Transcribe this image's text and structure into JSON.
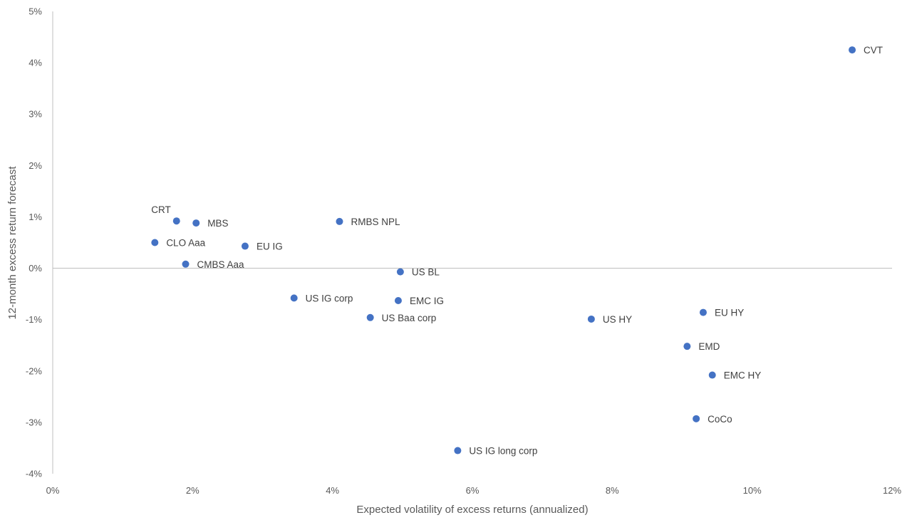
{
  "chart_data": {
    "type": "scatter",
    "title": "",
    "xlabel": "Expected volatility of excess returns (annualized)",
    "ylabel": "12-month excess return forecast",
    "xlim": [
      0,
      12
    ],
    "ylim": [
      -4,
      5
    ],
    "x_ticks": [
      0,
      2,
      4,
      6,
      8,
      10,
      12
    ],
    "y_ticks": [
      -4,
      -3,
      -2,
      -1,
      0,
      1,
      2,
      3,
      4,
      5
    ],
    "x_tick_labels": [
      "0%",
      "2%",
      "4%",
      "6%",
      "8%",
      "10%",
      "12%"
    ],
    "y_tick_labels": [
      "-4%",
      "-3%",
      "-2%",
      "-1%",
      "0%",
      "1%",
      "2%",
      "3%",
      "4%",
      "5%"
    ],
    "grid": false,
    "marker_color": "#4472C4",
    "points": [
      {
        "label": "CVT",
        "x": 11.43,
        "y": 4.25,
        "label_pos": "right"
      },
      {
        "label": "CRT",
        "x": 1.77,
        "y": 0.92,
        "label_pos": "above-left"
      },
      {
        "label": "MBS",
        "x": 2.05,
        "y": 0.88,
        "label_pos": "right"
      },
      {
        "label": "RMBS NPL",
        "x": 4.1,
        "y": 0.91,
        "label_pos": "right"
      },
      {
        "label": "CLO Aaa",
        "x": 1.46,
        "y": 0.5,
        "label_pos": "right"
      },
      {
        "label": "EU IG",
        "x": 2.75,
        "y": 0.43,
        "label_pos": "right"
      },
      {
        "label": "CMBS Aaa",
        "x": 1.9,
        "y": 0.08,
        "label_pos": "right"
      },
      {
        "label": "US BL",
        "x": 4.97,
        "y": -0.07,
        "label_pos": "right"
      },
      {
        "label": "US IG corp",
        "x": 3.45,
        "y": -0.58,
        "label_pos": "right"
      },
      {
        "label": "EMC IG",
        "x": 4.94,
        "y": -0.63,
        "label_pos": "right"
      },
      {
        "label": "US Baa corp",
        "x": 4.54,
        "y": -0.96,
        "label_pos": "right"
      },
      {
        "label": "US HY",
        "x": 7.7,
        "y": -0.99,
        "label_pos": "right"
      },
      {
        "label": "EU HY",
        "x": 9.3,
        "y": -0.86,
        "label_pos": "right"
      },
      {
        "label": "EMD",
        "x": 9.07,
        "y": -1.52,
        "label_pos": "right"
      },
      {
        "label": "EMC HY",
        "x": 9.43,
        "y": -2.08,
        "label_pos": "right"
      },
      {
        "label": "CoCo",
        "x": 9.2,
        "y": -2.93,
        "label_pos": "right"
      },
      {
        "label": "US IG long corp",
        "x": 5.79,
        "y": -3.55,
        "label_pos": "right"
      }
    ]
  }
}
